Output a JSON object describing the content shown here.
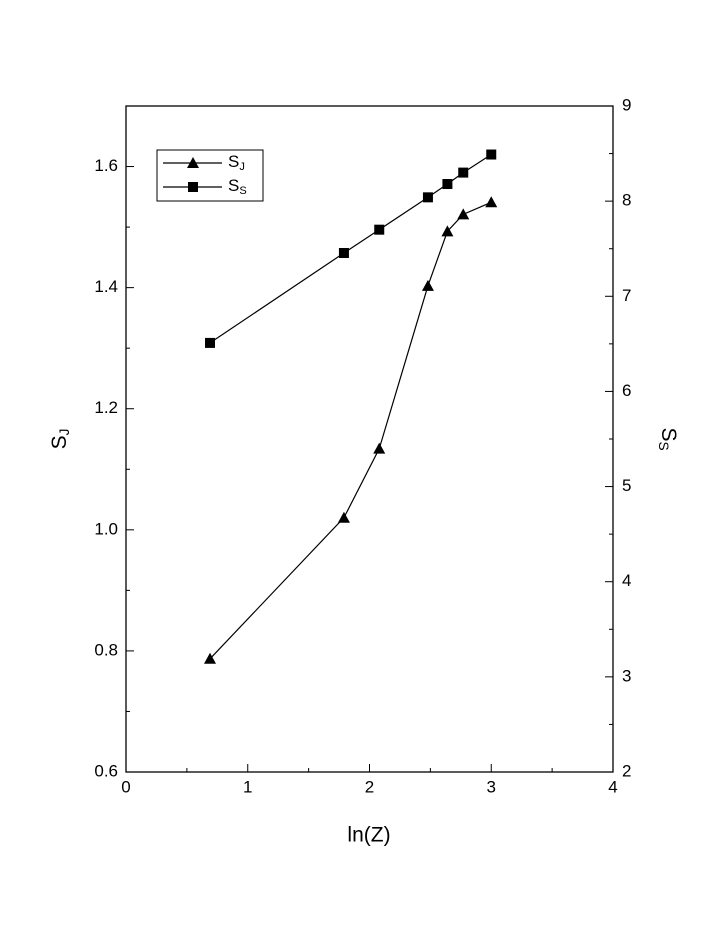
{
  "chart_data": {
    "type": "line",
    "x_label": "ln(Z)",
    "y_label": "SJ",
    "y2_label": "SS",
    "x": [
      0.69,
      1.79,
      2.08,
      2.48,
      2.64,
      2.77,
      3.0
    ],
    "series": [
      {
        "name": "SJ",
        "color": "#000000",
        "marker": "triangle",
        "values": [
          0.787,
          1.02,
          1.134,
          1.403,
          1.493,
          1.521,
          1.541
        ]
      },
      {
        "name": "SS",
        "color": "#000000",
        "marker": "square",
        "axis": "y2",
        "values": [
          6.51,
          7.455,
          7.7,
          8.04,
          8.18,
          8.3,
          8.49
        ]
      }
    ],
    "xlim": [
      0,
      4
    ],
    "xticks": [
      0,
      1,
      2,
      3,
      4
    ],
    "ylim": [
      0.6,
      1.7
    ],
    "yticks": [
      0.6,
      0.8,
      {
        "value": 1.0,
        "label": "1.0"
      },
      1.2,
      1.4,
      1.6
    ],
    "y2lim": [
      2,
      9
    ],
    "y2ticks": [
      2,
      3,
      4,
      5,
      6,
      7,
      8,
      9
    ],
    "legend": "upper left",
    "grid": false
  }
}
